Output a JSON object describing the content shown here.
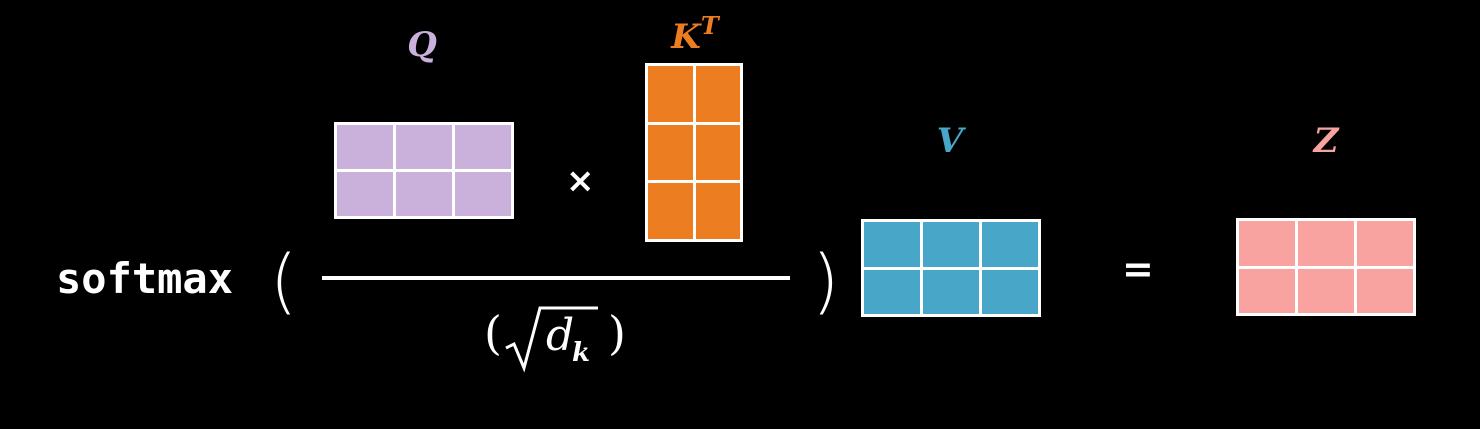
{
  "formula": {
    "function_name": "softmax",
    "open_paren": "(",
    "close_paren": ")",
    "multiply_symbol": "×",
    "equals_symbol": "=",
    "denominator": {
      "open_paren": "(",
      "close_paren": ")",
      "d": "d",
      "subscript": "k"
    }
  },
  "matrices": [
    {
      "id": "q",
      "label": "Q",
      "superscript": "",
      "rows": 2,
      "cols": 3,
      "color": "#C9B1DC",
      "label_color": "#C9B1DC"
    },
    {
      "id": "k",
      "label": "K",
      "superscript": "T",
      "rows": 3,
      "cols": 2,
      "color": "#ED7D21",
      "label_color": "#ED7D21"
    },
    {
      "id": "v",
      "label": "V",
      "superscript": "",
      "rows": 2,
      "cols": 3,
      "color": "#48A6C8",
      "label_color": "#48A6C8"
    },
    {
      "id": "z",
      "label": "Z",
      "superscript": "",
      "rows": 2,
      "cols": 3,
      "color": "#F8A3A0",
      "label_color": "#F8A3A0"
    }
  ],
  "colors": {
    "background": "#000000",
    "text": "#FFFFFF",
    "grid_line": "#FFFFFF"
  }
}
